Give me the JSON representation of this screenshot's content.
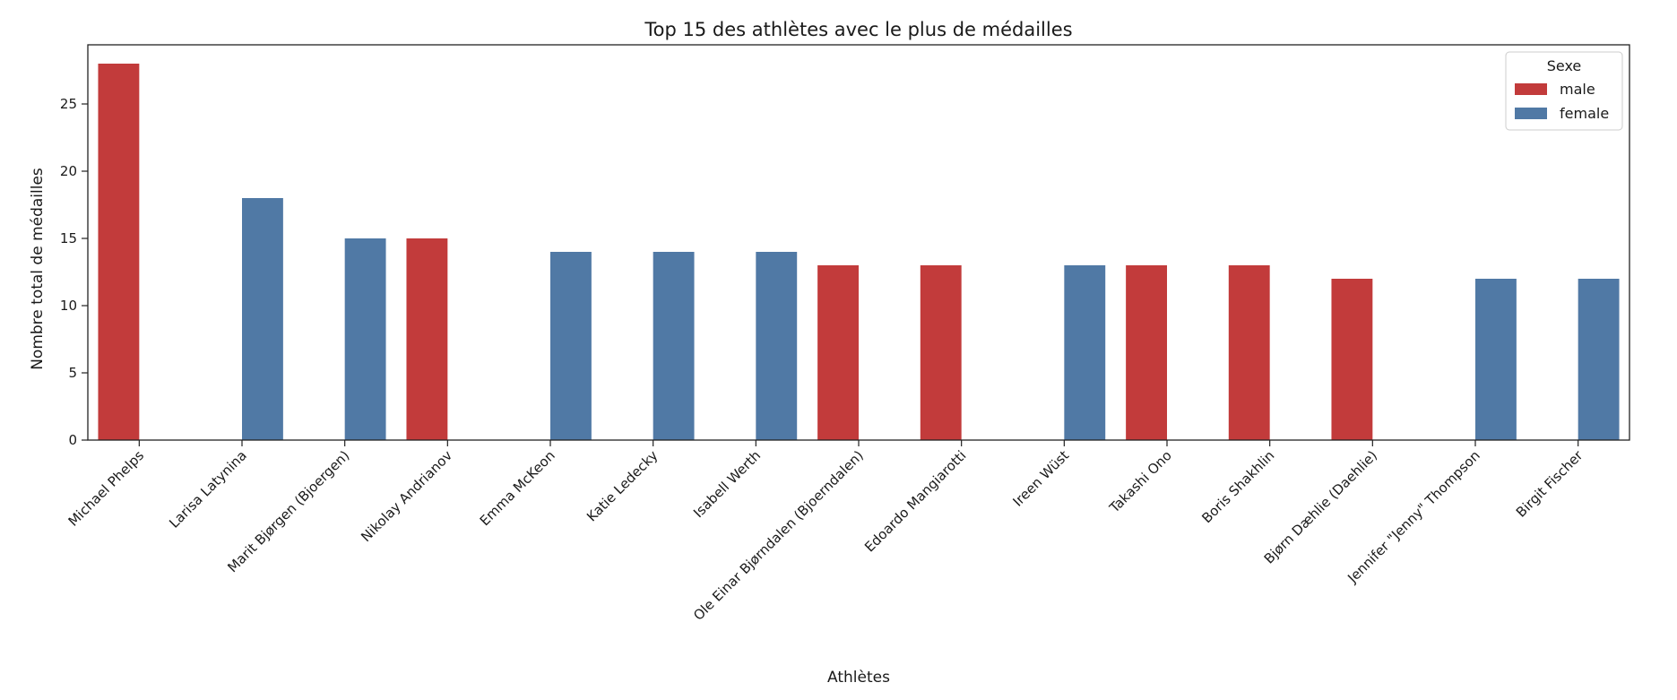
{
  "chart_data": {
    "type": "bar",
    "title": "Top 15 des athlètes avec le plus de médailles",
    "xlabel": "Athlètes",
    "ylabel": "Nombre total de médailles",
    "ylim": [
      0,
      29.4
    ],
    "yticks": [
      0,
      5,
      10,
      15,
      20,
      25
    ],
    "grid": false,
    "legend": {
      "title": "Sexe",
      "placement": "top-right",
      "entries": [
        "male",
        "female"
      ]
    },
    "categories": [
      "Michael Phelps",
      "Larisa Latynina",
      "Marit Bjørgen (Bjoergen)",
      "Nikolay Andrianov",
      "Emma McKeon",
      "Katie Ledecky",
      "Isabell Werth",
      "Ole Einar Bjørndalen (Bjoerndalen)",
      "Edoardo Mangiarotti",
      "Ireen Wüst",
      "Takashi Ono",
      "Boris Shakhlin",
      "Bjørn Dæhlie (Daehlie)",
      "Jennifer \"Jenny\" Thompson",
      "Birgit Fischer"
    ],
    "series": [
      {
        "name": "male",
        "color": "#c23b3b",
        "values": [
          28,
          null,
          null,
          15,
          null,
          null,
          null,
          13,
          13,
          null,
          13,
          13,
          12,
          null,
          null
        ]
      },
      {
        "name": "female",
        "color": "#5079a5",
        "values": [
          null,
          18,
          15,
          null,
          14,
          14,
          14,
          null,
          null,
          13,
          null,
          null,
          null,
          12,
          12
        ]
      }
    ]
  }
}
